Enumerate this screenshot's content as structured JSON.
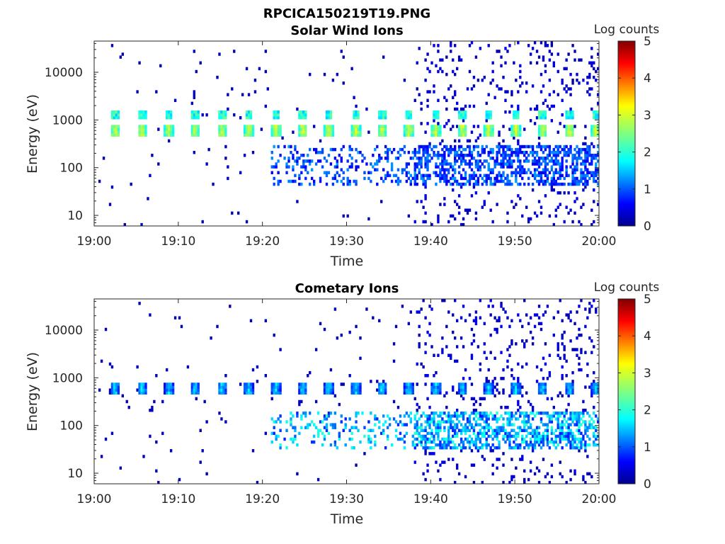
{
  "figure_title": "RPCICA150219T19.PNG",
  "chart_data": [
    {
      "type": "heatmap",
      "title": "Solar Wind Ions",
      "xlabel": "Time",
      "ylabel": "Energy (eV)",
      "x_ticks": [
        "19:00",
        "19:10",
        "19:20",
        "19:30",
        "19:40",
        "19:50",
        "20:00"
      ],
      "xlim": [
        "19:00",
        "20:00"
      ],
      "y_scale": "log",
      "y_ticks": [
        "10",
        "100",
        "1000",
        "10000"
      ],
      "ylim": [
        6,
        45000
      ],
      "colorbar": {
        "label": "Log counts",
        "ticks": [
          "0",
          "1",
          "2",
          "3",
          "4",
          "5"
        ],
        "range": [
          0,
          5
        ],
        "colormap": "jet"
      },
      "background": "#ffffff",
      "features": {
        "periodic_bursts_minutes": [
          2.5,
          5.7,
          8.9,
          12.0,
          15.2,
          18.4,
          21.6,
          24.8,
          27.9,
          31.1,
          34.2,
          37.4,
          40.6,
          43.8,
          46.9,
          50.1,
          53.3,
          56.5,
          59.6
        ],
        "peak_energy_eV": 600,
        "peak_log_counts": 3.2,
        "secondary_energy_eV": 1300,
        "secondary_log_counts": 2.4,
        "low_energy_band_eV": [
          40,
          300
        ],
        "low_energy_band_start_min": 21,
        "dense_region_start_min": 38
      }
    },
    {
      "type": "heatmap",
      "title": "Cometary Ions",
      "xlabel": "Time",
      "ylabel": "Energy (eV)",
      "x_ticks": [
        "19:00",
        "19:10",
        "19:20",
        "19:30",
        "19:40",
        "19:50",
        "20:00"
      ],
      "xlim": [
        "19:00",
        "20:00"
      ],
      "y_scale": "log",
      "y_ticks": [
        "10",
        "100",
        "1000",
        "10000"
      ],
      "ylim": [
        6,
        45000
      ],
      "colorbar": {
        "label": "Log counts",
        "ticks": [
          "0",
          "1",
          "2",
          "3",
          "4",
          "5"
        ],
        "range": [
          0,
          5
        ],
        "colormap": "jet"
      },
      "background": "#ffffff",
      "features": {
        "periodic_bursts_minutes": [
          2.5,
          5.7,
          8.9,
          12.0,
          15.2,
          18.4,
          21.6,
          24.8,
          27.9,
          31.1,
          34.2,
          37.4,
          40.6,
          43.8,
          46.9,
          50.1,
          53.3,
          56.5,
          59.6
        ],
        "peak_energy_eV": 600,
        "peak_log_counts": 2.0,
        "low_energy_band_eV": [
          30,
          200
        ],
        "low_energy_peak_log_counts": 2.1,
        "low_energy_band_start_min": 21,
        "dense_region_start_min": 38
      }
    }
  ]
}
